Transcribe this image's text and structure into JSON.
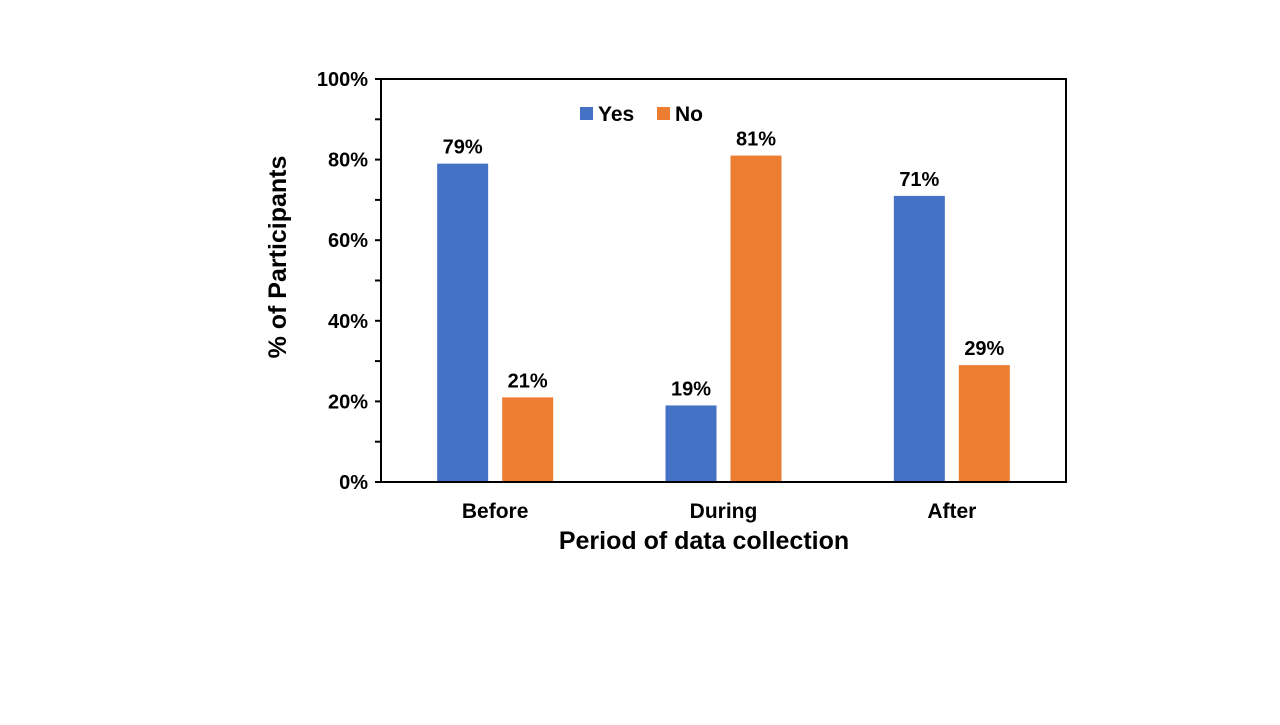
{
  "chart_data": {
    "type": "bar",
    "categories": [
      "Before",
      "During",
      "After"
    ],
    "series": [
      {
        "name": "Yes",
        "values": [
          79,
          19,
          71
        ],
        "color": "#4472C4"
      },
      {
        "name": "No",
        "values": [
          21,
          81,
          29
        ],
        "color": "#ED7D31"
      }
    ],
    "data_labels": [
      [
        "79%",
        "19%",
        "71%"
      ],
      [
        "21%",
        "81%",
        "29%"
      ]
    ],
    "ylim": [
      0,
      100
    ],
    "yticks": [
      0,
      20,
      40,
      60,
      80,
      100
    ],
    "ytick_labels": [
      "0%",
      "20%",
      "40%",
      "60%",
      "80%",
      "100%"
    ],
    "xlabel": "Period of data collection",
    "ylabel": "% of Participants",
    "title": "",
    "grid": false,
    "legend_position": "top-center"
  }
}
